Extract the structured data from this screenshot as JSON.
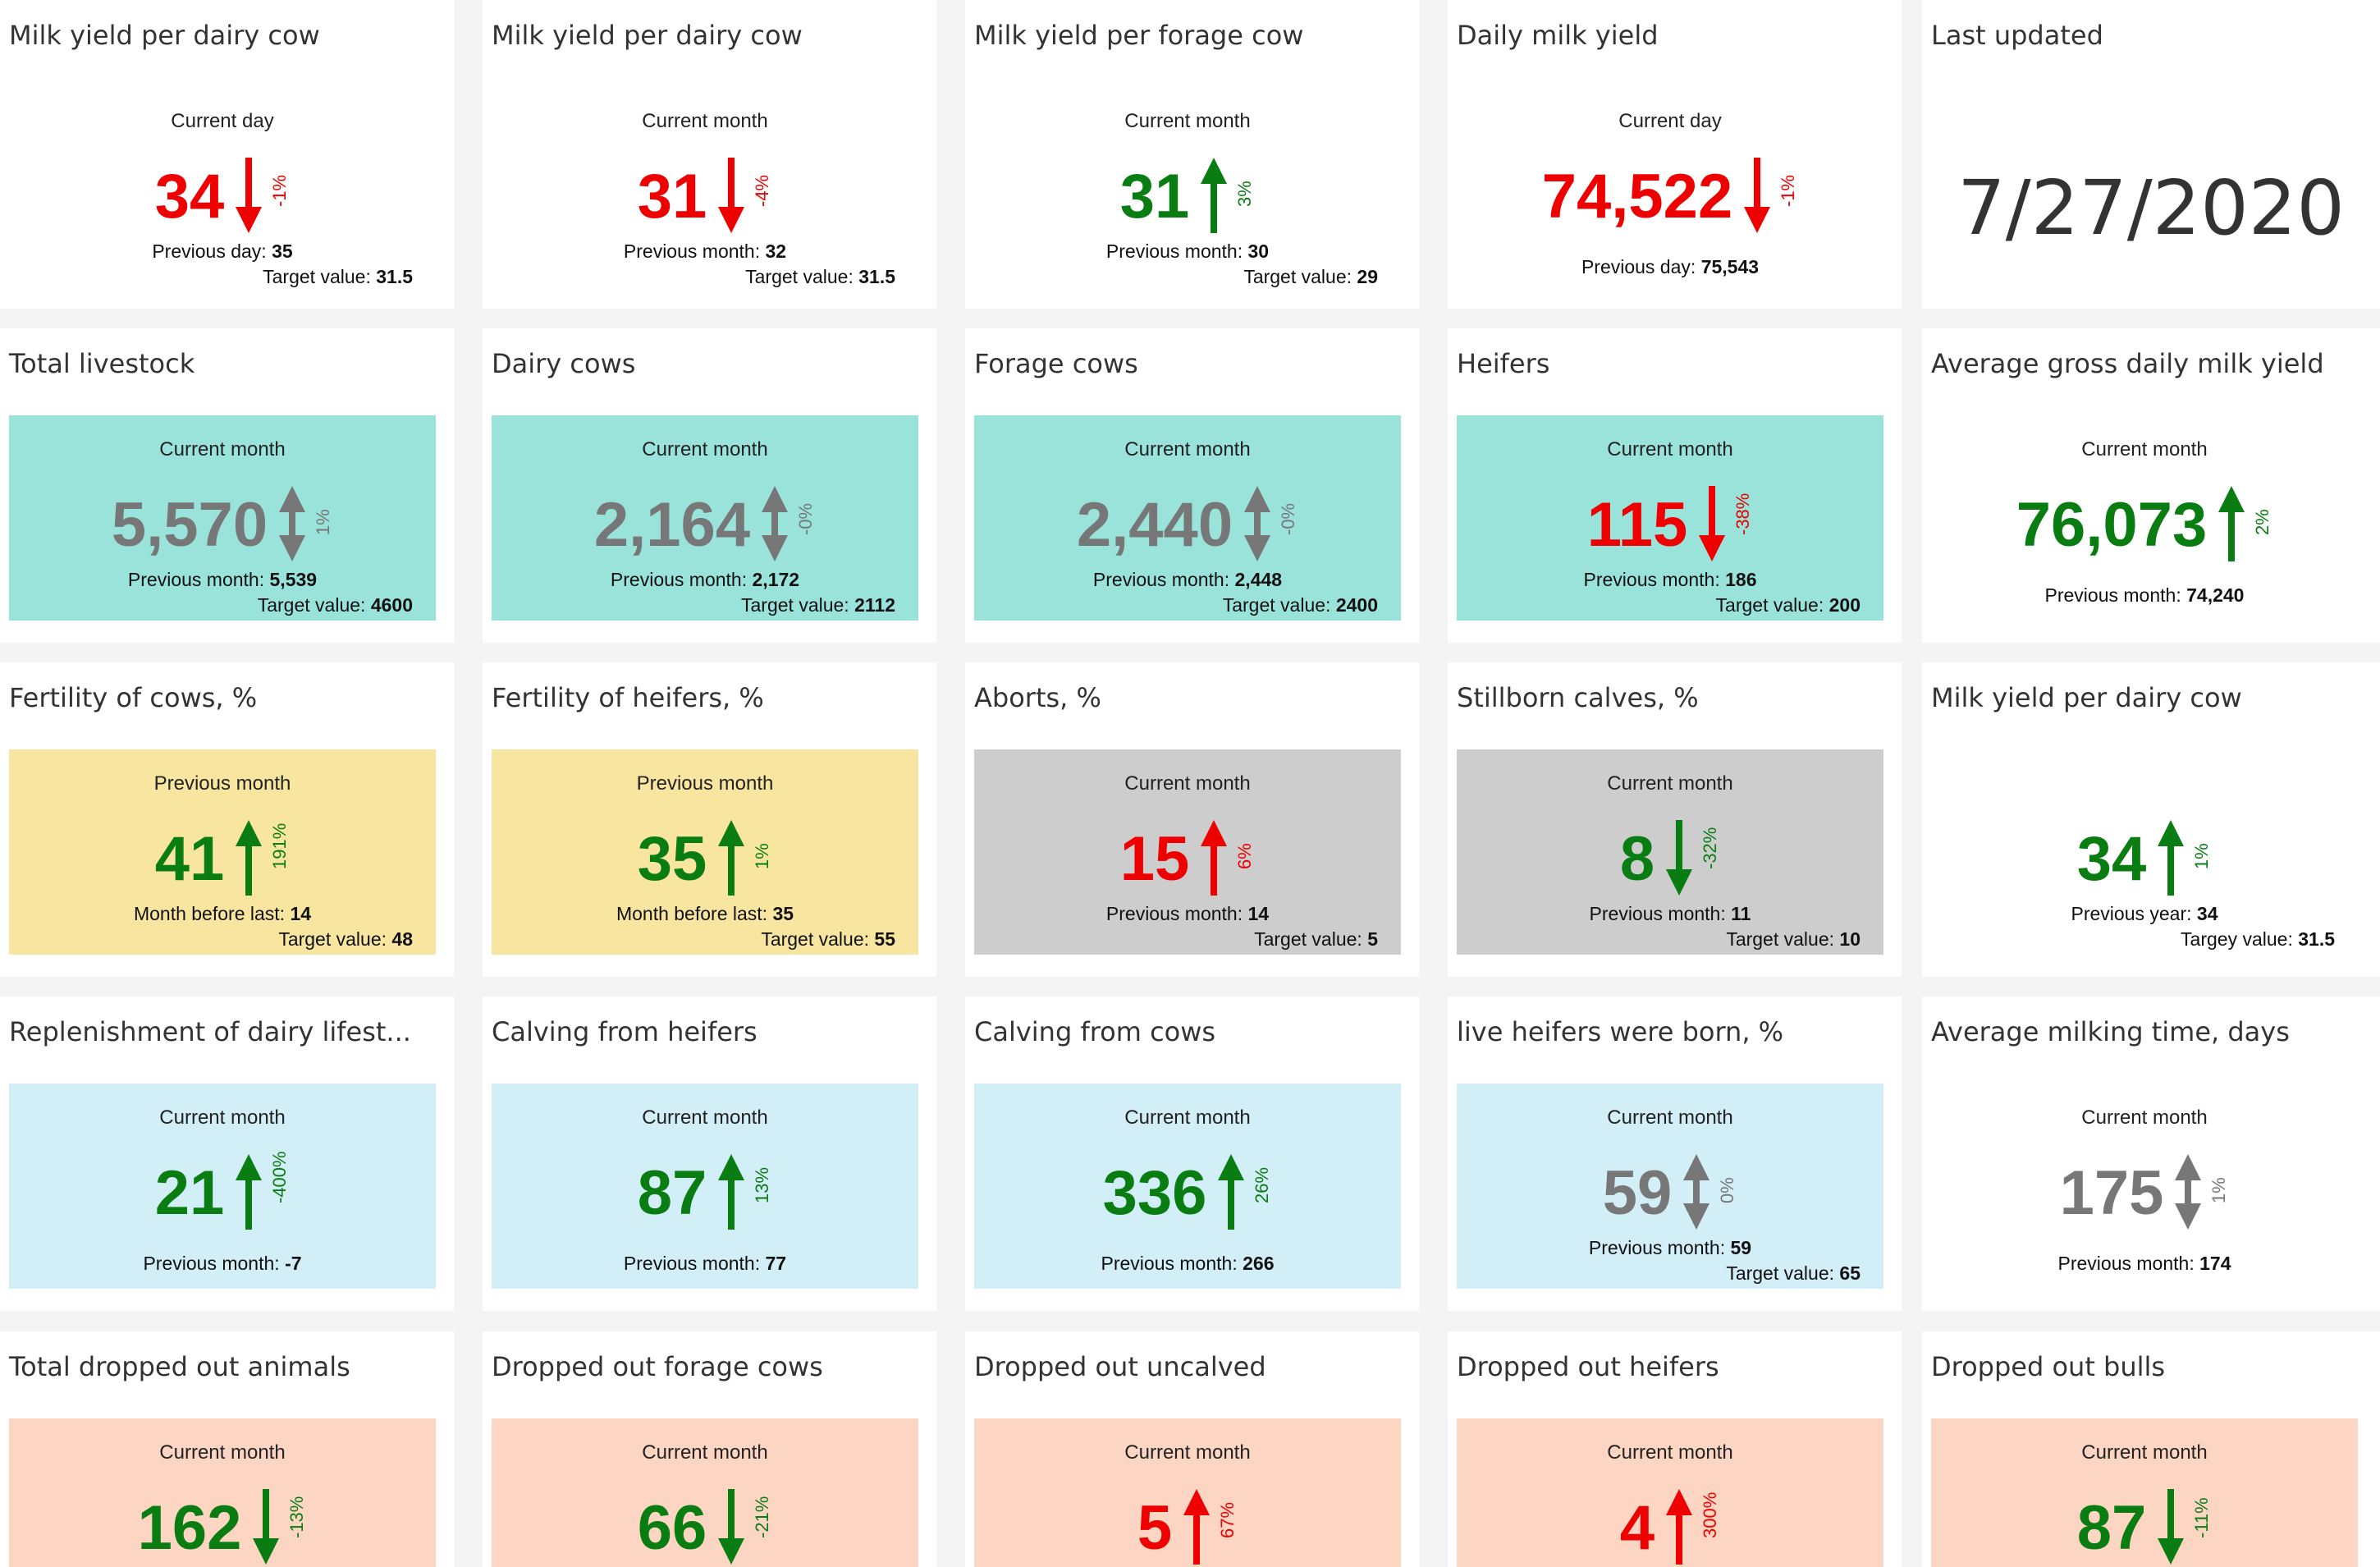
{
  "colors": {
    "down_red": "#ee0000",
    "up_green": "#0a7d12",
    "neutral_gray": "#777777",
    "teal": "#99e3db",
    "yellow": "#f8e6a0",
    "gray_panel": "#cdcdcd",
    "light_blue": "#d2eef7",
    "salmon": "#fdd5c3"
  },
  "cards": [
    {
      "title": "Milk yield per dairy cow",
      "period": "Current day",
      "value": "34",
      "value_color": "#ee0000",
      "direction": "down",
      "arrow_color": "#ee0000",
      "pct": "-1%",
      "pct_color": "#ee0000",
      "prev_label": "Previous day: ",
      "prev_value": "35",
      "target_label": "Target value: ",
      "target_value": "31.5",
      "bg": ""
    },
    {
      "title": "Milk yield per dairy cow",
      "period": "Current month",
      "value": "31",
      "value_color": "#ee0000",
      "direction": "down",
      "arrow_color": "#ee0000",
      "pct": "-4%",
      "pct_color": "#ee0000",
      "prev_label": "Previous month: ",
      "prev_value": "32",
      "target_label": "Target value: ",
      "target_value": "31.5",
      "bg": ""
    },
    {
      "title": "Milk yield per forage cow",
      "period": "Current month",
      "value": "31",
      "value_color": "#0a7d12",
      "direction": "up",
      "arrow_color": "#0a7d12",
      "pct": "3%",
      "pct_color": "#0a7d12",
      "prev_label": "Previous month: ",
      "prev_value": "30",
      "target_label": "Target value: ",
      "target_value": "29",
      "bg": ""
    },
    {
      "title": "Daily milk yield",
      "period": "Current day",
      "value": "74,522",
      "value_color": "#ee0000",
      "direction": "down",
      "arrow_color": "#ee0000",
      "pct": "-1%",
      "pct_color": "#ee0000",
      "prev_label": "Previous day: ",
      "prev_value": "75,543",
      "target_label": "",
      "target_value": "",
      "bg": ""
    },
    {
      "title": "Last updated",
      "date": "7/27/2020"
    },
    {
      "title": "Total livestock",
      "period": "Current month",
      "value": "5,570",
      "value_color": "#777777",
      "direction": "both",
      "arrow_color": "#777777",
      "pct": "1%",
      "pct_color": "#777777",
      "prev_label": "Previous month: ",
      "prev_value": "5,539",
      "target_label": "Target value: ",
      "target_value": "4600",
      "bg": "#99e3db"
    },
    {
      "title": "Dairy cows",
      "period": "Current month",
      "value": "2,164",
      "value_color": "#777777",
      "direction": "both",
      "arrow_color": "#777777",
      "pct": "-0%",
      "pct_color": "#777777",
      "prev_label": "Previous month: ",
      "prev_value": "2,172",
      "target_label": "Target value: ",
      "target_value": "2112",
      "bg": "#99e3db"
    },
    {
      "title": "Forage cows",
      "period": "Current month",
      "value": "2,440",
      "value_color": "#777777",
      "direction": "both",
      "arrow_color": "#777777",
      "pct": "-0%",
      "pct_color": "#777777",
      "prev_label": "Previous month: ",
      "prev_value": "2,448",
      "target_label": "Target value: ",
      "target_value": "2400",
      "bg": "#99e3db"
    },
    {
      "title": "Heifers",
      "period": "Current month",
      "value": "115",
      "value_color": "#ee0000",
      "direction": "down",
      "arrow_color": "#ee0000",
      "pct": "-38%",
      "pct_color": "#ee0000",
      "prev_label": "Previous month: ",
      "prev_value": "186",
      "target_label": "Target value: ",
      "target_value": "200",
      "bg": "#99e3db"
    },
    {
      "title": "Average gross daily milk yield",
      "period": "Current month",
      "value": "76,073",
      "value_color": "#0a7d12",
      "direction": "up",
      "arrow_color": "#0a7d12",
      "pct": "2%",
      "pct_color": "#0a7d12",
      "prev_label": "Previous month: ",
      "prev_value": "74,240",
      "target_label": "",
      "target_value": "",
      "bg": ""
    },
    {
      "title": "Fertility of cows, %",
      "period": "Previous month",
      "value": "41",
      "value_color": "#0a7d12",
      "direction": "up",
      "arrow_color": "#0a7d12",
      "pct": "191%",
      "pct_color": "#0a7d12",
      "prev_label": "Month before last: ",
      "prev_value": "14",
      "target_label": "Target value: ",
      "target_value": "48",
      "bg": "#f8e6a0"
    },
    {
      "title": "Fertility of heifers, %",
      "period": "Previous month",
      "value": "35",
      "value_color": "#0a7d12",
      "direction": "up",
      "arrow_color": "#0a7d12",
      "pct": "1%",
      "pct_color": "#0a7d12",
      "prev_label": "Month before last: ",
      "prev_value": "35",
      "target_label": "Target value: ",
      "target_value": "55",
      "bg": "#f8e6a0"
    },
    {
      "title": "Aborts, %",
      "period": "Current month",
      "value": "15",
      "value_color": "#ee0000",
      "direction": "up",
      "arrow_color": "#ee0000",
      "pct": "6%",
      "pct_color": "#ee0000",
      "prev_label": "Previous month: ",
      "prev_value": "14",
      "target_label": "Target value: ",
      "target_value": "5",
      "bg": "#cdcdcd"
    },
    {
      "title": "Stillborn calves, %",
      "period": "Current month",
      "value": "8",
      "value_color": "#0a7d12",
      "direction": "down",
      "arrow_color": "#0a7d12",
      "pct": "-32%",
      "pct_color": "#0a7d12",
      "prev_label": "Previous month: ",
      "prev_value": "11",
      "target_label": "Target value: ",
      "target_value": "10",
      "bg": "#cdcdcd"
    },
    {
      "title": "Milk yield per dairy cow",
      "period": "",
      "value": "34",
      "value_color": "#0a7d12",
      "direction": "up",
      "arrow_color": "#0a7d12",
      "pct": "1%",
      "pct_color": "#0a7d12",
      "prev_label": "Previous year: ",
      "prev_value": "34",
      "target_label": "Targey value: ",
      "target_value": "31.5",
      "bg": ""
    },
    {
      "title": "Replenishment of dairy lifest...",
      "period": "Current month",
      "value": "21",
      "value_color": "#0a7d12",
      "direction": "up",
      "arrow_color": "#0a7d12",
      "pct": "-400%",
      "pct_color": "#0a7d12",
      "prev_label": "Previous month: ",
      "prev_value": "-7",
      "target_label": "",
      "target_value": "",
      "bg": "#d2eef7"
    },
    {
      "title": "Calving from heifers",
      "period": "Current month",
      "value": "87",
      "value_color": "#0a7d12",
      "direction": "up",
      "arrow_color": "#0a7d12",
      "pct": "13%",
      "pct_color": "#0a7d12",
      "prev_label": "Previous month: ",
      "prev_value": "77",
      "target_label": "",
      "target_value": "",
      "bg": "#d2eef7"
    },
    {
      "title": "Calving from cows",
      "period": "Current month",
      "value": "336",
      "value_color": "#0a7d12",
      "direction": "up",
      "arrow_color": "#0a7d12",
      "pct": "26%",
      "pct_color": "#0a7d12",
      "prev_label": "Previous month: ",
      "prev_value": "266",
      "target_label": "",
      "target_value": "",
      "bg": "#d2eef7"
    },
    {
      "title": "live heifers were born, %",
      "period": "Current month",
      "value": "59",
      "value_color": "#777777",
      "direction": "both",
      "arrow_color": "#777777",
      "pct": "0%",
      "pct_color": "#777777",
      "prev_label": "Previous month: ",
      "prev_value": "59",
      "target_label": "Target value: ",
      "target_value": "65",
      "bg": "#d2eef7"
    },
    {
      "title": "Average milking time, days",
      "period": "Current month",
      "value": "175",
      "value_color": "#777777",
      "direction": "both",
      "arrow_color": "#777777",
      "pct": "1%",
      "pct_color": "#777777",
      "prev_label": "Previous month: ",
      "prev_value": "174",
      "target_label": "",
      "target_value": "",
      "bg": ""
    },
    {
      "title": "Total dropped out animals",
      "period": "Current month",
      "value": "162",
      "value_color": "#0a7d12",
      "direction": "down",
      "arrow_color": "#0a7d12",
      "pct": "-13%",
      "pct_color": "#0a7d12",
      "prev_label": "",
      "prev_value": "",
      "target_label": "",
      "target_value": "",
      "bg": "#fdd5c3"
    },
    {
      "title": "Dropped out forage cows",
      "period": "Current month",
      "value": "66",
      "value_color": "#0a7d12",
      "direction": "down",
      "arrow_color": "#0a7d12",
      "pct": "-21%",
      "pct_color": "#0a7d12",
      "prev_label": "",
      "prev_value": "",
      "target_label": "",
      "target_value": "",
      "bg": "#fdd5c3"
    },
    {
      "title": "Dropped out uncalved",
      "period": "Current month",
      "value": "5",
      "value_color": "#ee0000",
      "direction": "up",
      "arrow_color": "#ee0000",
      "pct": "67%",
      "pct_color": "#ee0000",
      "prev_label": "",
      "prev_value": "",
      "target_label": "",
      "target_value": "",
      "bg": "#fdd5c3"
    },
    {
      "title": "Dropped out heifers",
      "period": "Current month",
      "value": "4",
      "value_color": "#ee0000",
      "direction": "up",
      "arrow_color": "#ee0000",
      "pct": "300%",
      "pct_color": "#ee0000",
      "prev_label": "",
      "prev_value": "",
      "target_label": "",
      "target_value": "",
      "bg": "#fdd5c3"
    },
    {
      "title": "Dropped out bulls",
      "period": "Current month",
      "value": "87",
      "value_color": "#0a7d12",
      "direction": "down",
      "arrow_color": "#0a7d12",
      "pct": "-11%",
      "pct_color": "#0a7d12",
      "prev_label": "",
      "prev_value": "",
      "target_label": "",
      "target_value": "",
      "bg": "#fdd5c3"
    }
  ]
}
